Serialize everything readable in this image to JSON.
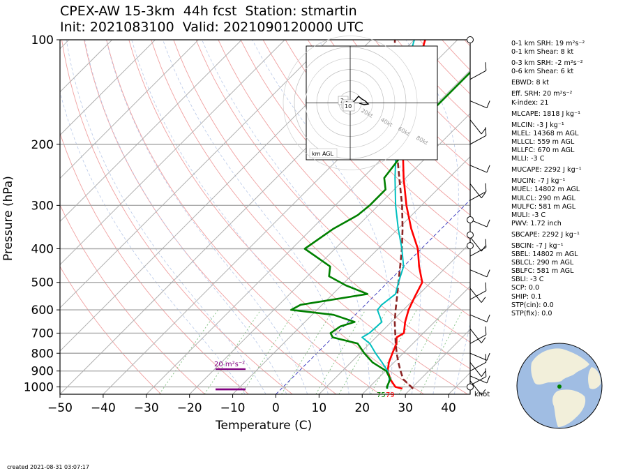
{
  "header": {
    "line1": "CPEX-AW 15-3km  44h fcst  Station: stmartin",
    "line2": "Init: 2021083100  Valid: 2021090120000 UTC"
  },
  "footer": {
    "created": "created 2021-08-31 03:07:17"
  },
  "wind_unit": "knot",
  "stats": [
    "0-1 km SRH: 19 m²s⁻²",
    "0-1 km Shear: 8 kt",
    "0-3 km SRH: -2 m²s⁻²",
    "0-6 km Shear: 6 kt",
    "EBWD: 8 kt",
    "Eff. SRH: 20 m²s⁻²",
    "K-index: 21",
    "MLCAPE: 1818 J kg⁻¹",
    "MLCIN: -3 J kg⁻¹",
    "MLEL: 14368 m AGL",
    "MLLCL: 559 m AGL",
    "MLLFC: 670 m AGL",
    "MLLI: -3 C",
    "MUCAPE: 2292 J kg⁻¹",
    "MUCIN: -7 J kg⁻¹",
    "MUEL: 14802 m AGL",
    "MULCL: 290 m AGL",
    "MULFC: 581 m AGL",
    "MULI: -3 C",
    "PWV: 1.72 inch",
    "SBCAPE: 2292 J kg⁻¹",
    "SBCIN: -7 J kg⁻¹",
    "SBEL: 14802 m AGL",
    "SBLCL: 290 m AGL",
    "SBLFC: 581 m AGL",
    "SBLI: -3 C",
    "SCP: 0.0",
    "SHIP: 0.1",
    "STP(cin): 0.0",
    "STP(fix): 0.0"
  ],
  "chart_data": {
    "type": "skew-t",
    "xlabel": "Temperature (C)",
    "ylabel": "Pressure (hPa)",
    "x_ticks": [
      -50,
      -40,
      -30,
      -20,
      -10,
      0,
      10,
      20,
      30,
      40
    ],
    "y_ticks": [
      100,
      200,
      300,
      400,
      500,
      600,
      700,
      800,
      900,
      1000
    ],
    "xlim": [
      -50,
      45
    ],
    "ylim": [
      1050,
      100
    ],
    "y_scale": "log",
    "grid": true,
    "series": [
      {
        "role": "temperature",
        "color": "#ff0000",
        "points": [
          [
            1012,
            28
          ],
          [
            1000,
            26
          ],
          [
            975,
            24.5
          ],
          [
            950,
            23
          ],
          [
            925,
            21.8
          ],
          [
            900,
            20.5
          ],
          [
            850,
            18.8
          ],
          [
            800,
            17.5
          ],
          [
            750,
            16.2
          ],
          [
            720,
            14.8
          ],
          [
            700,
            15.5
          ],
          [
            650,
            13.2
          ],
          [
            600,
            11.2
          ],
          [
            550,
            9.6
          ],
          [
            500,
            8
          ],
          [
            450,
            3.6
          ],
          [
            400,
            -0.8
          ],
          [
            350,
            -7
          ],
          [
            300,
            -13.5
          ],
          [
            250,
            -20.5
          ],
          [
            200,
            -28.5
          ],
          [
            150,
            -37.5
          ],
          [
            100,
            -47.5
          ]
        ]
      },
      {
        "role": "virtual-temperature",
        "color": "#8b2525",
        "dashed": true,
        "points": [
          [
            1012,
            30.5
          ],
          [
            950,
            26
          ],
          [
            900,
            23.5
          ],
          [
            850,
            21
          ],
          [
            800,
            18.5
          ],
          [
            750,
            16
          ],
          [
            700,
            13.5
          ],
          [
            650,
            10.8
          ],
          [
            600,
            8.2
          ],
          [
            550,
            5.5
          ],
          [
            500,
            2.5
          ],
          [
            450,
            -0.8
          ],
          [
            400,
            -4.5
          ],
          [
            350,
            -9
          ],
          [
            300,
            -14.5
          ],
          [
            250,
            -21.5
          ],
          [
            200,
            -30
          ],
          [
            150,
            -40.5
          ],
          [
            100,
            -54.5
          ]
        ]
      },
      {
        "role": "wet-bulb",
        "color": "#00bfbf",
        "points": [
          [
            1012,
            24.5
          ],
          [
            950,
            22.8
          ],
          [
            900,
            20.5
          ],
          [
            850,
            17.2
          ],
          [
            800,
            13.6
          ],
          [
            750,
            10
          ],
          [
            720,
            6.8
          ],
          [
            700,
            7.5
          ],
          [
            650,
            7.8
          ],
          [
            600,
            4
          ],
          [
            580,
            3.8
          ],
          [
            540,
            4.5
          ],
          [
            500,
            2.5
          ],
          [
            450,
            0
          ],
          [
            400,
            -4.5
          ],
          [
            350,
            -10
          ],
          [
            300,
            -16
          ],
          [
            250,
            -22.5
          ],
          [
            200,
            -30
          ],
          [
            150,
            -40
          ],
          [
            100,
            -50
          ]
        ]
      },
      {
        "role": "dewpoint",
        "color": "#008000",
        "points": [
          [
            1012,
            24.5
          ],
          [
            1000,
            24
          ],
          [
            950,
            23
          ],
          [
            900,
            20.2
          ],
          [
            850,
            15
          ],
          [
            800,
            11
          ],
          [
            750,
            7.2
          ],
          [
            720,
            0
          ],
          [
            700,
            -1.5
          ],
          [
            670,
            -0.8
          ],
          [
            650,
            1.5
          ],
          [
            620,
            -5
          ],
          [
            600,
            -16
          ],
          [
            580,
            -15
          ],
          [
            540,
            -2
          ],
          [
            510,
            -9
          ],
          [
            480,
            -15
          ],
          [
            450,
            -17
          ],
          [
            400,
            -27
          ],
          [
            350,
            -25
          ],
          [
            320,
            -22.5
          ],
          [
            300,
            -22
          ],
          [
            270,
            -22
          ],
          [
            250,
            -25
          ],
          [
            220,
            -26
          ],
          [
            200,
            -29
          ],
          [
            180,
            -30
          ],
          [
            160,
            -29.5
          ],
          [
            140,
            -29.5
          ],
          [
            120,
            -29.5
          ],
          [
            110,
            -28.7
          ],
          [
            100,
            -27.5
          ]
        ]
      }
    ],
    "surface_labels": {
      "temperature": "79",
      "dewpoint": "75"
    },
    "annotations": [
      "20 m²s⁻²"
    ],
    "hodograph": {
      "height_label": "km AGL",
      "ring_labels": [
        "20kt",
        "40kt",
        "60kt",
        "80kt"
      ],
      "height_markers": [
        "2",
        "1",
        "10"
      ]
    },
    "inset_map": {
      "station_marker_color": "#008000"
    }
  }
}
